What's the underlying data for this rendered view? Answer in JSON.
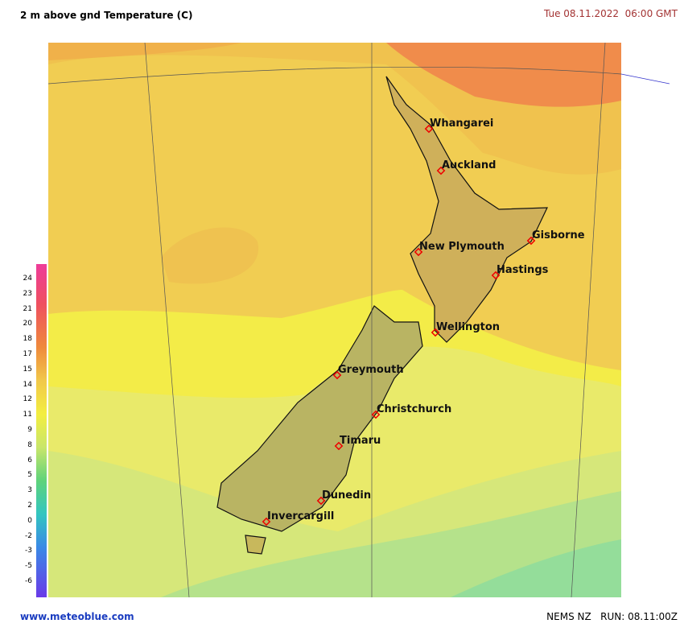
{
  "header": {
    "title": "2 m above gnd Temperature (C)",
    "datetime": "Tue 08.11.2022  06:00 GMT"
  },
  "legend": {
    "labels": [
      24,
      23,
      21,
      20,
      18,
      17,
      15,
      14,
      12,
      11,
      9,
      8,
      6,
      5,
      3,
      2,
      0,
      -2,
      -3,
      -5,
      -6
    ]
  },
  "cities": [
    "Whangarei",
    "Auckland",
    "New Plymouth",
    "Gisborne",
    "Hastings",
    "Wellington",
    "Greymouth",
    "Christchurch",
    "Timaru",
    "Dunedin",
    "Invercargill"
  ],
  "footer": {
    "site": "www.meteoblue.com",
    "model": "NEMS NZ   RUN: 08.11:00Z"
  }
}
